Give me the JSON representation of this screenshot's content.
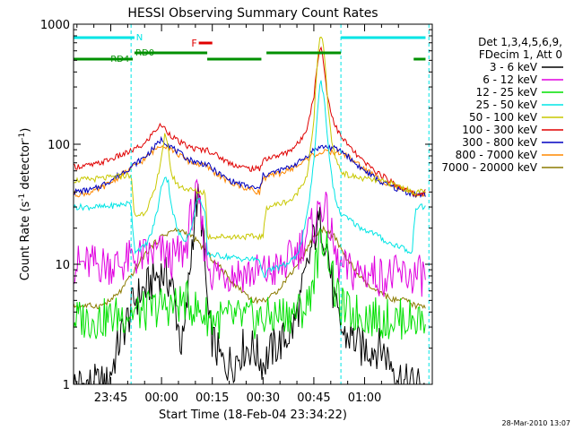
{
  "chart_data": {
    "type": "line",
    "title": "HESSI Observing Summary Count Rates",
    "xlabel": "Start Time (18-Feb-04 23:34:22)",
    "ylabel_main": "Count Rate (s",
    "ylabel_sup1": "-1",
    "ylabel_mid": " detector",
    "ylabel_sup2": "-1",
    "ylabel_end": ")",
    "y_scale": "log",
    "ylim": [
      1,
      1000
    ],
    "xlim_minutes": [
      -11,
      95
    ],
    "x_ticks": [
      {
        "m": 0,
        "label": "23:45"
      },
      {
        "m": 15,
        "label": "00:00"
      },
      {
        "m": 30,
        "label": "00:15"
      },
      {
        "m": 45,
        "label": "00:30"
      },
      {
        "m": 60,
        "label": "00:45"
      },
      {
        "m": 75,
        "label": "01:00"
      }
    ],
    "y_ticks": [
      {
        "v": 1,
        "label": "1"
      },
      {
        "v": 10,
        "label": "10"
      },
      {
        "v": 100,
        "label": "100"
      },
      {
        "v": 1000,
        "label": "1000"
      }
    ],
    "legend_header": [
      "Det 1,3,4,5,6,9,",
      "FDecim 1, Att 0"
    ],
    "legend_position": "right",
    "timestamp": "28-Mar-2010 13:07",
    "flags": [
      {
        "label": "N",
        "color": "#00e5e5",
        "segments": [
          [
            -11,
            7
          ],
          [
            68,
            93
          ]
        ]
      },
      {
        "label": "F",
        "color": "#e00000",
        "segments": [
          [
            26,
            30
          ]
        ]
      },
      {
        "label": "RD0",
        "color": "#009000",
        "segments": [
          [
            7,
            28.5
          ],
          [
            46,
            68
          ]
        ]
      },
      {
        "label": "RD4",
        "color": "#009000",
        "segments": [
          [
            -11,
            6.5
          ],
          [
            28.5,
            44.5
          ],
          [
            89.5,
            93
          ]
        ]
      }
    ],
    "vlines": [
      6,
      68,
      94
    ],
    "series": [
      {
        "name": "3 - 6 keV",
        "color": "#000000",
        "x": [
          -11,
          -1,
          3,
          5,
          7,
          9,
          11,
          13,
          15,
          18,
          20,
          21,
          22,
          24,
          25,
          26,
          27,
          28,
          29,
          31,
          33,
          36,
          39,
          42,
          45,
          48,
          51,
          54,
          56,
          58,
          60,
          61,
          62,
          63,
          64,
          65,
          66,
          67,
          69,
          71,
          74,
          77,
          80,
          83,
          87,
          90,
          93
        ],
        "y": [
          1,
          1,
          2.5,
          3.5,
          5,
          5.8,
          6.5,
          7.8,
          8.5,
          7,
          3,
          2,
          3,
          15,
          30,
          35,
          22,
          8,
          3,
          2,
          1.5,
          1.5,
          2,
          2,
          1.5,
          2,
          2.3,
          3,
          5,
          9,
          17,
          20,
          22,
          18,
          14,
          8,
          5,
          3.5,
          2.5,
          2.5,
          2,
          2,
          2,
          1.5,
          1,
          1,
          1
        ]
      },
      {
        "name": "6 - 12 keV",
        "color": "#e000e0",
        "x": [
          -11,
          -2,
          3,
          6,
          9,
          12,
          15,
          18,
          20,
          22,
          24,
          25,
          26,
          27,
          28,
          30,
          35,
          40,
          45,
          50,
          53,
          56,
          58,
          60,
          61,
          62,
          63,
          64,
          65,
          66,
          67,
          69,
          72,
          75,
          80,
          85,
          89,
          90,
          93
        ],
        "y": [
          10,
          10,
          10,
          11,
          11.5,
          12,
          12.5,
          11,
          12,
          13,
          28,
          35,
          32,
          20,
          12,
          8.5,
          8.5,
          8.5,
          8.5,
          9,
          11,
          14,
          18,
          21,
          25,
          33,
          30,
          25,
          18,
          13,
          10,
          9,
          8.5,
          8.5,
          8,
          8,
          8,
          8,
          8
        ]
      },
      {
        "name": "12 - 25 keV",
        "color": "#00e000",
        "x": [
          -11,
          -2,
          3,
          6,
          10,
          15,
          19,
          22,
          24,
          26,
          28,
          30,
          35,
          40,
          45,
          50,
          55,
          58,
          60,
          62,
          63,
          64,
          65,
          66,
          68,
          70,
          75,
          80,
          85,
          90,
          93
        ],
        "y": [
          3.5,
          3.5,
          3.8,
          4,
          4,
          4.5,
          4.5,
          5,
          4.5,
          4,
          3.8,
          3.5,
          3.5,
          3.5,
          3.5,
          3.8,
          4,
          4.5,
          8,
          15,
          17,
          14,
          10,
          6,
          4.5,
          4,
          3.8,
          3.5,
          3.5,
          3.5,
          3.5
        ]
      },
      {
        "name": "25 - 50 keV",
        "color": "#00e5e5",
        "x": [
          -11,
          -2,
          5,
          6,
          7,
          10,
          12,
          14,
          15,
          16,
          17,
          18,
          20,
          22,
          24,
          25,
          26,
          27,
          28,
          28.5,
          30,
          35,
          40,
          44,
          45,
          47,
          50,
          52,
          54,
          56,
          58,
          60,
          61,
          62,
          63,
          64,
          65,
          66,
          67,
          68,
          70,
          74,
          78,
          82,
          86,
          89,
          90,
          93
        ],
        "y": [
          30,
          30,
          32,
          32,
          13,
          14,
          18,
          30,
          45,
          55,
          48,
          30,
          18,
          16,
          20,
          30,
          38,
          30,
          25,
          12,
          12,
          11.5,
          11,
          11,
          8,
          9,
          9.5,
          10,
          11,
          14,
          25,
          70,
          180,
          350,
          250,
          120,
          60,
          40,
          30,
          26,
          24,
          20,
          18,
          15,
          14,
          12,
          30,
          30
        ]
      },
      {
        "name": "50 - 100 keV",
        "color": "#c8c800",
        "x": [
          -11,
          -2,
          5,
          6,
          7,
          10,
          13,
          15,
          16,
          17,
          18,
          20,
          23,
          26,
          28,
          28.5,
          32,
          37,
          42,
          45,
          46,
          50,
          54,
          58,
          60,
          61,
          62,
          63,
          64,
          65,
          66,
          67,
          68,
          70,
          74,
          78,
          82,
          85,
          89,
          90,
          93
        ],
        "y": [
          50,
          52,
          55,
          55,
          25,
          27,
          40,
          80,
          120,
          90,
          55,
          45,
          42,
          40,
          40,
          17,
          17,
          17,
          17,
          17,
          30,
          32,
          35,
          55,
          150,
          500,
          850,
          600,
          250,
          120,
          85,
          70,
          60,
          55,
          52,
          50,
          48,
          45,
          40,
          40,
          40
        ]
      },
      {
        "name": "100 - 300 keV",
        "color": "#e00000",
        "x": [
          -11,
          -5,
          0,
          5,
          10,
          13,
          15,
          17,
          20,
          23,
          26,
          28.5,
          30,
          35,
          40,
          44,
          45,
          48,
          52,
          56,
          58,
          60,
          61,
          62,
          63,
          64,
          66,
          68,
          70,
          72,
          75,
          80,
          85,
          90,
          93
        ],
        "y": [
          65,
          67,
          75,
          85,
          100,
          130,
          145,
          125,
          105,
          95,
          90,
          90,
          85,
          70,
          63,
          62,
          75,
          78,
          85,
          105,
          140,
          250,
          450,
          700,
          450,
          250,
          150,
          115,
          100,
          85,
          70,
          55,
          45,
          38,
          40
        ]
      },
      {
        "name": "300 - 800 keV",
        "color": "#0000c0",
        "x": [
          -11,
          -5,
          0,
          5,
          10,
          13,
          15,
          17,
          20,
          23,
          26,
          28.5,
          30,
          35,
          40,
          44,
          45,
          48,
          52,
          56,
          58,
          60,
          62,
          64,
          66,
          68,
          70,
          72,
          75,
          80,
          85,
          90,
          93
        ],
        "y": [
          40,
          42,
          50,
          62,
          78,
          95,
          110,
          100,
          85,
          75,
          70,
          68,
          62,
          50,
          45,
          42,
          55,
          58,
          63,
          72,
          80,
          90,
          95,
          95,
          92,
          88,
          80,
          70,
          60,
          48,
          42,
          38,
          38
        ]
      },
      {
        "name": "800 - 7000 keV",
        "color": "#ff8800",
        "x": [
          -11,
          -5,
          0,
          5,
          10,
          13,
          15,
          17,
          20,
          23,
          26,
          28.5,
          30,
          35,
          40,
          44,
          45,
          48,
          52,
          56,
          58,
          60,
          62,
          64,
          66,
          68,
          70,
          72,
          75,
          80,
          85,
          90,
          93
        ],
        "y": [
          38,
          40,
          48,
          60,
          75,
          90,
          100,
          95,
          82,
          72,
          68,
          65,
          60,
          48,
          43,
          40,
          52,
          55,
          60,
          68,
          75,
          82,
          85,
          86,
          86,
          85,
          80,
          72,
          62,
          50,
          43,
          38,
          38
        ]
      },
      {
        "name": "7000 - 20000 keV",
        "color": "#8b7a00",
        "x": [
          -11,
          -3,
          0,
          3,
          6,
          9,
          12,
          15,
          18,
          21,
          24,
          27,
          30,
          33,
          36,
          39,
          42,
          45,
          48,
          51,
          54,
          57,
          60,
          63,
          66,
          69,
          72,
          75,
          78,
          81,
          84,
          87,
          90,
          93
        ],
        "y": [
          4.5,
          4.5,
          5,
          6,
          8,
          11,
          14,
          17,
          19,
          19,
          17,
          14,
          11,
          9,
          7,
          6,
          5,
          5,
          5.5,
          7,
          9,
          12,
          17,
          20,
          17,
          12,
          9,
          7,
          6,
          5.5,
          5,
          5,
          4.5,
          4.5
        ]
      }
    ]
  }
}
